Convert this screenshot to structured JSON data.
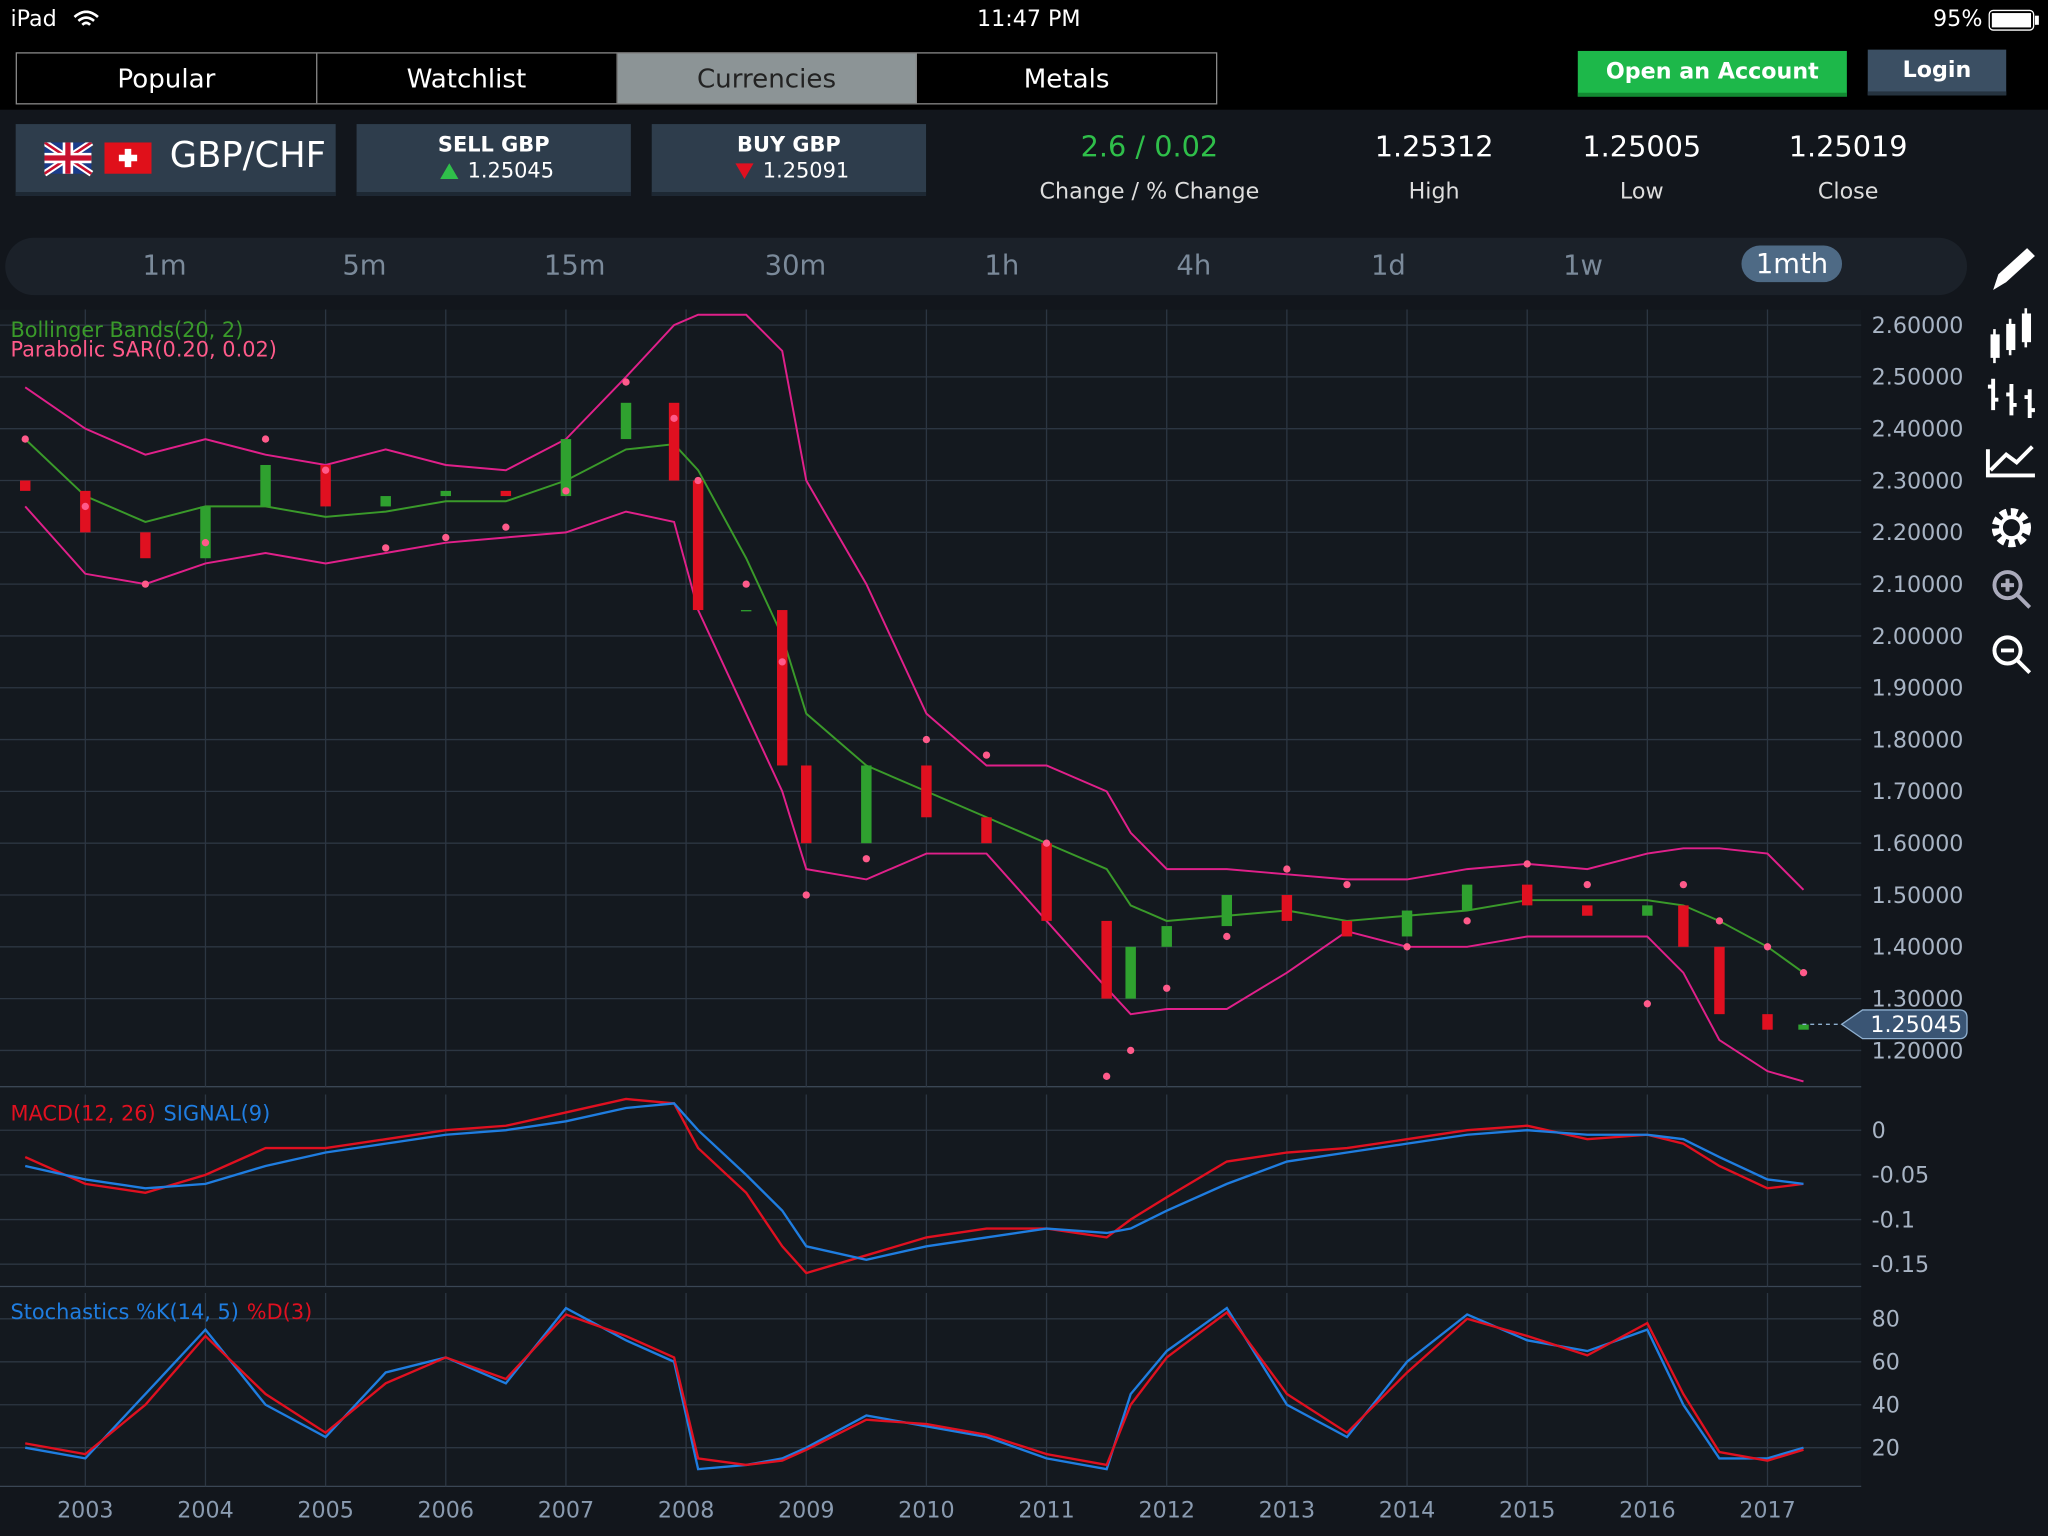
{
  "status": {
    "device": "iPad",
    "time": "11:47 PM",
    "battery": "95%"
  },
  "tabs": [
    "Popular",
    "Watchlist",
    "Currencies",
    "Metals"
  ],
  "account": {
    "open": "Open an Account",
    "login": "Login"
  },
  "instrument": {
    "pair": "GBP/CHF",
    "sell_label": "SELL GBP",
    "sell_price": "1.25045",
    "buy_label": "BUY GBP",
    "buy_price": "1.25091"
  },
  "stats": [
    {
      "value": "2.6 / 0.02",
      "label": "Change / % Change"
    },
    {
      "value": "1.25312",
      "label": "High"
    },
    {
      "value": "1.25005",
      "label": "Low"
    },
    {
      "value": "1.25019",
      "label": "Close"
    }
  ],
  "timeframes": [
    "1m",
    "5m",
    "15m",
    "30m",
    "1h",
    "4h",
    "1d",
    "1w",
    "1mth"
  ],
  "chart_data": [
    {
      "type": "candlestick",
      "xlim": [
        2002.29,
        2017.78
      ],
      "ylim": [
        1.13,
        2.63
      ],
      "up_color": "#2fa12f",
      "down_color": "#e01020",
      "x": [
        2002.5,
        2003,
        2003.5,
        2004,
        2004.5,
        2005,
        2005.5,
        2006,
        2006.5,
        2007,
        2007.5,
        2007.9,
        2008.1,
        2008.5,
        2008.8,
        2009,
        2009.5,
        2010,
        2010.5,
        2011,
        2011.5,
        2011.7,
        2012,
        2012.5,
        2013,
        2013.5,
        2014,
        2014.5,
        2015,
        2015.5,
        2016,
        2016.3,
        2016.6,
        2017,
        2017.3
      ],
      "open": [
        2.3,
        2.28,
        2.2,
        2.15,
        2.25,
        2.33,
        2.25,
        2.27,
        2.28,
        2.27,
        2.38,
        2.45,
        2.3,
        2.05,
        2.05,
        1.75,
        1.6,
        1.75,
        1.65,
        1.6,
        1.45,
        1.3,
        1.4,
        1.44,
        1.5,
        1.45,
        1.42,
        1.47,
        1.52,
        1.48,
        1.46,
        1.48,
        1.4,
        1.27,
        1.24
      ],
      "close": [
        2.28,
        2.2,
        2.15,
        2.25,
        2.33,
        2.25,
        2.27,
        2.28,
        2.27,
        2.38,
        2.45,
        2.3,
        2.05,
        2.05,
        1.75,
        1.6,
        1.75,
        1.65,
        1.6,
        1.45,
        1.3,
        1.4,
        1.44,
        1.5,
        1.45,
        1.42,
        1.47,
        1.52,
        1.48,
        1.46,
        1.48,
        1.4,
        1.27,
        1.24,
        1.25
      ],
      "bollinger": {
        "name": "Bollinger Bands(20, 2)",
        "mid_color": "#3a9a2a",
        "band_color": "#e0208a",
        "upper": [
          2.48,
          2.4,
          2.35,
          2.38,
          2.35,
          2.33,
          2.36,
          2.33,
          2.32,
          2.38,
          2.5,
          2.6,
          2.62,
          2.62,
          2.55,
          2.3,
          2.1,
          1.85,
          1.75,
          1.75,
          1.7,
          1.62,
          1.55,
          1.55,
          1.54,
          1.53,
          1.53,
          1.55,
          1.56,
          1.55,
          1.58,
          1.59,
          1.59,
          1.58,
          1.51
        ],
        "middle": [
          2.38,
          2.27,
          2.22,
          2.25,
          2.25,
          2.23,
          2.24,
          2.26,
          2.26,
          2.3,
          2.36,
          2.37,
          2.32,
          2.15,
          2.0,
          1.85,
          1.75,
          1.7,
          1.65,
          1.6,
          1.55,
          1.48,
          1.45,
          1.46,
          1.47,
          1.45,
          1.46,
          1.47,
          1.49,
          1.49,
          1.49,
          1.48,
          1.45,
          1.4,
          1.35
        ],
        "lower": [
          2.25,
          2.12,
          2.1,
          2.14,
          2.16,
          2.14,
          2.16,
          2.18,
          2.19,
          2.2,
          2.24,
          2.22,
          2.05,
          1.85,
          1.7,
          1.55,
          1.53,
          1.58,
          1.58,
          1.45,
          1.32,
          1.27,
          1.28,
          1.28,
          1.35,
          1.43,
          1.4,
          1.4,
          1.42,
          1.42,
          1.42,
          1.35,
          1.22,
          1.16,
          1.14
        ]
      },
      "sar": {
        "name": "Parabolic SAR(0.20, 0.02)",
        "color": "#ff5a8a",
        "values": [
          2.38,
          2.25,
          2.1,
          2.18,
          2.38,
          2.32,
          2.17,
          2.19,
          2.21,
          2.28,
          2.49,
          2.42,
          2.3,
          2.1,
          1.95,
          1.5,
          1.57,
          1.8,
          1.77,
          1.6,
          1.15,
          1.2,
          1.32,
          1.42,
          1.55,
          1.52,
          1.4,
          1.45,
          1.56,
          1.52,
          1.29,
          1.52,
          1.45,
          1.4,
          1.35
        ]
      },
      "current": {
        "value": 1.25045,
        "label": "1.25045"
      },
      "yticks": [
        {
          "value": 2.6,
          "label": "2.60000"
        },
        {
          "value": 2.5,
          "label": "2.50000"
        },
        {
          "value": 2.4,
          "label": "2.40000"
        },
        {
          "value": 2.3,
          "label": "2.30000"
        },
        {
          "value": 2.2,
          "label": "2.20000"
        },
        {
          "value": 2.1,
          "label": "2.10000"
        },
        {
          "value": 2.0,
          "label": "2.00000"
        },
        {
          "value": 1.9,
          "label": "1.90000"
        },
        {
          "value": 1.8,
          "label": "1.80000"
        },
        {
          "value": 1.7,
          "label": "1.70000"
        },
        {
          "value": 1.6,
          "label": "1.60000"
        },
        {
          "value": 1.5,
          "label": "1.50000"
        },
        {
          "value": 1.4,
          "label": "1.40000"
        },
        {
          "value": 1.3,
          "label": "1.30000"
        },
        {
          "value": 1.2,
          "label": "1.20000"
        }
      ],
      "grid": true
    },
    {
      "type": "line",
      "xlim": [
        2002.29,
        2017.78
      ],
      "ylim": [
        -0.175,
        0.04
      ],
      "yticks": [
        0,
        -0.05,
        -0.1,
        -0.15
      ],
      "grid": true,
      "x": [
        2002.5,
        2003,
        2003.5,
        2004,
        2004.5,
        2005,
        2005.5,
        2006,
        2006.5,
        2007,
        2007.5,
        2007.9,
        2008.1,
        2008.5,
        2008.8,
        2009,
        2009.5,
        2010,
        2010.5,
        2011,
        2011.5,
        2011.7,
        2012,
        2012.5,
        2013,
        2013.5,
        2014,
        2014.5,
        2015,
        2015.5,
        2016,
        2016.3,
        2016.6,
        2017,
        2017.3
      ],
      "series": [
        {
          "name": "MACD(12, 26)",
          "color": "#e01020",
          "values": [
            -0.03,
            -0.06,
            -0.07,
            -0.05,
            -0.02,
            -0.02,
            -0.01,
            0,
            0.005,
            0.02,
            0.035,
            0.03,
            -0.02,
            -0.07,
            -0.13,
            -0.16,
            -0.14,
            -0.12,
            -0.11,
            -0.11,
            -0.12,
            -0.1,
            -0.075,
            -0.035,
            -0.025,
            -0.02,
            -0.01,
            0,
            0.005,
            -0.01,
            -0.005,
            -0.015,
            -0.04,
            -0.065,
            -0.06
          ]
        },
        {
          "name": "SIGNAL(9)",
          "color": "#1f7de0",
          "values": [
            -0.04,
            -0.055,
            -0.065,
            -0.06,
            -0.04,
            -0.025,
            -0.015,
            -0.005,
            0,
            0.01,
            0.025,
            0.03,
            0,
            -0.05,
            -0.09,
            -0.13,
            -0.145,
            -0.13,
            -0.12,
            -0.11,
            -0.115,
            -0.11,
            -0.09,
            -0.06,
            -0.035,
            -0.025,
            -0.015,
            -0.005,
            0,
            -0.005,
            -0.005,
            -0.01,
            -0.03,
            -0.055,
            -0.06
          ]
        }
      ]
    },
    {
      "type": "line",
      "xlim": [
        2002.29,
        2017.78
      ],
      "ylim": [
        2,
        92
      ],
      "yticks": [
        20,
        40,
        60,
        80
      ],
      "grid": true,
      "xticks": [
        2003,
        2004,
        2005,
        2006,
        2007,
        2008,
        2009,
        2010,
        2011,
        2012,
        2013,
        2014,
        2015,
        2016,
        2017
      ],
      "x": [
        2002.5,
        2003,
        2003.5,
        2004,
        2004.5,
        2005,
        2005.5,
        2006,
        2006.5,
        2007,
        2007.5,
        2007.9,
        2008.1,
        2008.5,
        2008.8,
        2009,
        2009.5,
        2010,
        2010.5,
        2011,
        2011.5,
        2011.7,
        2012,
        2012.5,
        2013,
        2013.5,
        2014,
        2014.5,
        2015,
        2015.5,
        2016,
        2016.3,
        2016.6,
        2017,
        2017.3
      ],
      "series": [
        {
          "name": "Stochastics %K(14, 5)",
          "color": "#1f7de0",
          "values": [
            20,
            15,
            45,
            75,
            40,
            25,
            55,
            62,
            50,
            85,
            70,
            60,
            10,
            12,
            15,
            20,
            35,
            30,
            25,
            15,
            10,
            45,
            65,
            85,
            40,
            25,
            60,
            82,
            70,
            65,
            75,
            40,
            15,
            15,
            20
          ]
        },
        {
          "name": "%D(3)",
          "color": "#e01020",
          "values": [
            22,
            17,
            40,
            72,
            45,
            27,
            50,
            62,
            52,
            82,
            72,
            62,
            15,
            12,
            14,
            19,
            33,
            31,
            26,
            17,
            12,
            40,
            62,
            83,
            45,
            27,
            55,
            80,
            72,
            63,
            78,
            45,
            18,
            14,
            19
          ]
        }
      ]
    }
  ]
}
